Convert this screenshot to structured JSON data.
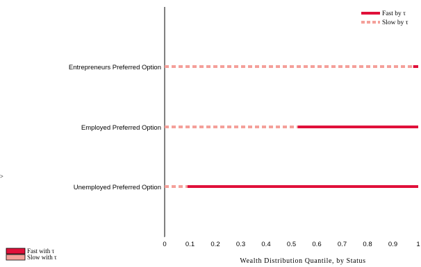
{
  "chart_data": {
    "type": "bar",
    "title": "",
    "xlabel": "Wealth Distribution Quantile, by Status",
    "ylabel": "",
    "xlim": [
      0,
      1
    ],
    "xticks": [
      "0",
      "0.1",
      "0.2",
      "0.3",
      "0.4",
      "0.5",
      "0.6",
      "0.7",
      "0.8",
      "0.9",
      "1"
    ],
    "grid": false,
    "categories": [
      "Entrepreneurs Preferred  Option",
      "Employed Preferred Option",
      "Unemployed Preferred Option"
    ],
    "segments": [
      {
        "category": "Entrepreneurs Preferred  Option",
        "slow": [
          0,
          0.98
        ],
        "fast": [
          0.98,
          1
        ]
      },
      {
        "category": "Employed Preferred Option",
        "slow": [
          0,
          0.525
        ],
        "fast": [
          0.525,
          1
        ]
      },
      {
        "category": "Unemployed Preferred Option",
        "slow": [
          0,
          0.09
        ],
        "fast": [
          0.09,
          1
        ]
      }
    ],
    "legend": {
      "placement": "top-right",
      "entries": [
        {
          "label": "Fast by τ",
          "style": "solid",
          "color": "#e0103a"
        },
        {
          "label": "Slow by τ",
          "style": "dashed",
          "color": "#f4a09a"
        }
      ]
    },
    "secondary_legend": {
      "placement": "bottom-left",
      "entries": [
        {
          "label": "Fast with τ",
          "color": "#e0103a"
        },
        {
          "label": "Slow with τ",
          "color": "#f4a09a"
        }
      ]
    },
    "colors": {
      "fast": "#e0103a",
      "slow": "#f4a09a"
    }
  }
}
